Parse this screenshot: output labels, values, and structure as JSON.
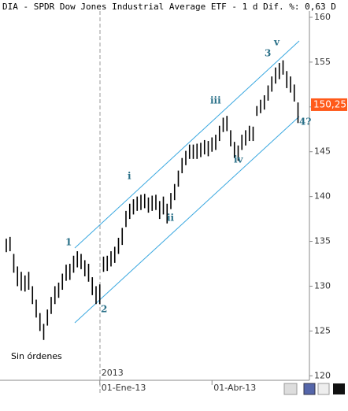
{
  "chart_data": {
    "type": "ohlc",
    "title": "DIA - SPDR Dow Jones Industrial Average ETF -  1 d Dif. %: 0,63 D",
    "categories": [
      null,
      null,
      null,
      null,
      null,
      null,
      null,
      null,
      null,
      null,
      null,
      null,
      null,
      null,
      null,
      null,
      null,
      null,
      null,
      null,
      null,
      null,
      null,
      null,
      null,
      "01-Ene-13",
      null,
      null,
      null,
      null,
      null,
      null,
      null,
      null,
      null,
      null,
      null,
      null,
      null,
      null,
      null,
      null,
      null,
      null,
      null,
      null,
      null,
      null,
      null,
      null,
      null,
      null,
      null,
      null,
      null,
      "01-Abr-13",
      null,
      null,
      null,
      null,
      null,
      null,
      null,
      null,
      null,
      null,
      null,
      null,
      null,
      null,
      null,
      null,
      null,
      null,
      null,
      null,
      null,
      null,
      null
    ],
    "year_label": "2013",
    "low": [
      133.8,
      133.9,
      131.5,
      130,
      129.5,
      129.4,
      129.6,
      128,
      126.5,
      125,
      124,
      125.6,
      126.9,
      128,
      128.7,
      129.6,
      130.6,
      130.7,
      131.5,
      132.1,
      131.9,
      131.1,
      130.5,
      129,
      128,
      128,
      131.6,
      131.7,
      132.2,
      132.6,
      133.6,
      134.6,
      136.6,
      137.5,
      138,
      138.4,
      138.5,
      138.7,
      138.2,
      138.4,
      138.5,
      137.5,
      138,
      137,
      138.6,
      139.6,
      141.1,
      142.6,
      143.5,
      144.2,
      144.2,
      144.2,
      144.4,
      144.7,
      144.5,
      145,
      145.2,
      146.2,
      147.2,
      147.3,
      145.6,
      144.3,
      144,
      145.2,
      145.7,
      146.2,
      146.2,
      149,
      149.3,
      149.7,
      150.7,
      151.7,
      152.6,
      153.1,
      153.6,
      152.1,
      151.6,
      150.6,
      148.2
    ],
    "high": [
      135.3,
      135.5,
      133.6,
      132.2,
      131.6,
      131.2,
      131.6,
      130,
      128.5,
      127,
      125.8,
      127.4,
      128.8,
      130,
      130.4,
      131.4,
      132.4,
      132.5,
      133.4,
      133.9,
      133.6,
      132.9,
      132.5,
      131,
      130,
      130.2,
      133.3,
      133.4,
      133.9,
      134.4,
      135.4,
      136.5,
      138.4,
      139.2,
      139.7,
      140,
      140.2,
      140.3,
      139.9,
      140.1,
      140.2,
      139.5,
      140,
      139.2,
      140.4,
      141.4,
      142.9,
      144.3,
      145.1,
      145.8,
      145.8,
      145.9,
      146,
      146.3,
      146.2,
      146.6,
      146.9,
      147.9,
      148.8,
      149,
      147.4,
      146.1,
      145.7,
      146.9,
      147.4,
      147.9,
      147.8,
      150.1,
      150.8,
      151.3,
      152.4,
      153.4,
      154.4,
      154.9,
      155.2,
      154,
      153.4,
      152.5,
      150.5
    ],
    "color": "#000000",
    "last_price": 150.251,
    "last_price_label": "150,251",
    "last_price_color": "#ff5a1a",
    "ylim": [
      119.5,
      160.7
    ],
    "yticks": [
      120,
      125,
      130,
      135,
      140,
      145,
      150,
      155,
      160
    ],
    "grid": false,
    "annotations": [
      "1",
      "2",
      "i",
      "ii",
      "iii",
      "iv",
      "3",
      "v",
      "4?",
      "Sin órdenes"
    ]
  }
}
